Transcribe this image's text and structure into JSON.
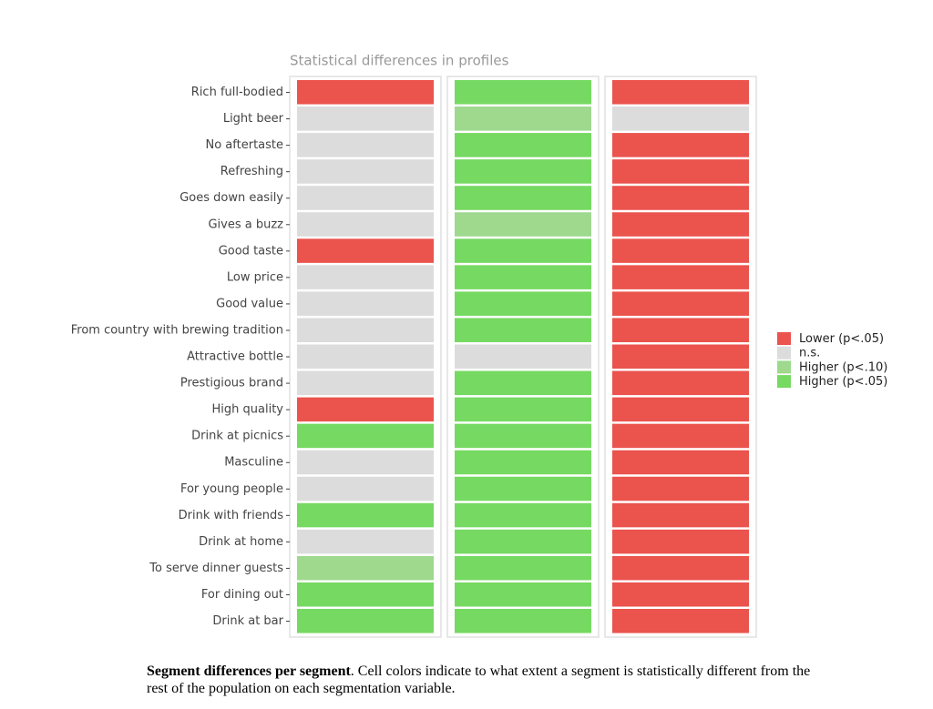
{
  "chart_data": {
    "type": "heatmap",
    "title": "Statistical differences in profiles",
    "rows": [
      "Rich full-bodied",
      "Light beer",
      "No aftertaste",
      "Refreshing",
      "Goes down easily",
      "Gives a buzz",
      "Good taste",
      "Low price",
      "Good value",
      "From country with brewing tradition",
      "Attractive bottle",
      "Prestigious brand",
      "High quality",
      "Drink at picnics",
      "Masculine",
      "For young people",
      "Drink with friends",
      "Drink at home",
      "To serve dinner guests",
      "For dining out",
      "Drink at bar"
    ],
    "levels": [
      {
        "name": "Lower (p<.05)",
        "color": "#eb534d"
      },
      {
        "name": "n.s.",
        "color": "#dcdcdc"
      },
      {
        "name": "Higher (p<.10)",
        "color": "#9ed98e"
      },
      {
        "name": "Higher (p<.05)",
        "color": "#76d962"
      }
    ],
    "cells": [
      [
        "Lower (p<.05)",
        "Higher (p<.05)",
        "Lower (p<.05)"
      ],
      [
        "n.s.",
        "Higher (p<.10)",
        "n.s."
      ],
      [
        "n.s.",
        "Higher (p<.05)",
        "Lower (p<.05)"
      ],
      [
        "n.s.",
        "Higher (p<.05)",
        "Lower (p<.05)"
      ],
      [
        "n.s.",
        "Higher (p<.05)",
        "Lower (p<.05)"
      ],
      [
        "n.s.",
        "Higher (p<.10)",
        "Lower (p<.05)"
      ],
      [
        "Lower (p<.05)",
        "Higher (p<.05)",
        "Lower (p<.05)"
      ],
      [
        "n.s.",
        "Higher (p<.05)",
        "Lower (p<.05)"
      ],
      [
        "n.s.",
        "Higher (p<.05)",
        "Lower (p<.05)"
      ],
      [
        "n.s.",
        "Higher (p<.05)",
        "Lower (p<.05)"
      ],
      [
        "n.s.",
        "n.s.",
        "Lower (p<.05)"
      ],
      [
        "n.s.",
        "Higher (p<.05)",
        "Lower (p<.05)"
      ],
      [
        "Lower (p<.05)",
        "Higher (p<.05)",
        "Lower (p<.05)"
      ],
      [
        "Higher (p<.05)",
        "Higher (p<.05)",
        "Lower (p<.05)"
      ],
      [
        "n.s.",
        "Higher (p<.05)",
        "Lower (p<.05)"
      ],
      [
        "n.s.",
        "Higher (p<.05)",
        "Lower (p<.05)"
      ],
      [
        "Higher (p<.05)",
        "Higher (p<.05)",
        "Lower (p<.05)"
      ],
      [
        "n.s.",
        "Higher (p<.05)",
        "Lower (p<.05)"
      ],
      [
        "Higher (p<.10)",
        "Higher (p<.05)",
        "Lower (p<.05)"
      ],
      [
        "Higher (p<.05)",
        "Higher (p<.05)",
        "Lower (p<.05)"
      ],
      [
        "Higher (p<.05)",
        "Higher (p<.05)",
        "Lower (p<.05)"
      ]
    ]
  },
  "caption": {
    "bold": "Segment differences per segment",
    "text": ". Cell colors indicate to what extent a segment is statistically different from the rest of the population on each segmentation variable."
  }
}
